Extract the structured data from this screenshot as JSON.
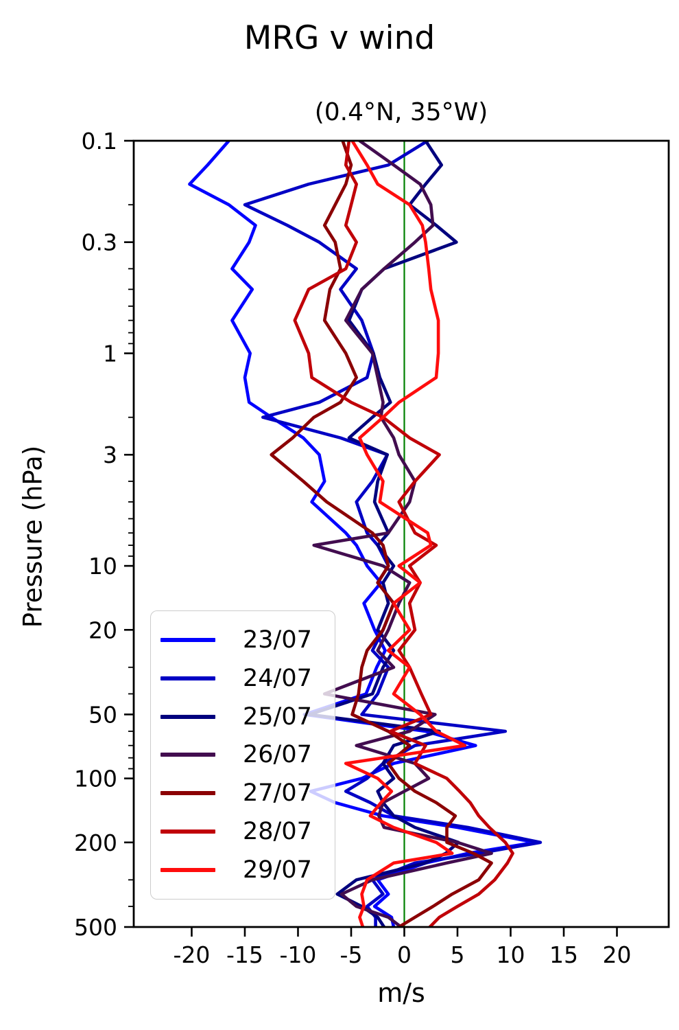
{
  "figure": {
    "title": "MRG v wind",
    "subtitle": "(0.4°N, 35°W)"
  },
  "chart_data": {
    "type": "line",
    "title": "MRG v wind",
    "subtitle": "(0.4°N, 35°W)",
    "xlabel": "m/s",
    "ylabel": "Pressure (hPa)",
    "grid": false,
    "legend_position": "center left",
    "x_axis": {
      "min": -25.45,
      "max": 24.87,
      "ticks": [
        -20,
        -15,
        -10,
        -5,
        0,
        5,
        10,
        15,
        20
      ],
      "tick_labels": [
        "-20",
        "-15",
        "-10",
        "-5",
        "0",
        "5",
        "10",
        "15",
        "20"
      ]
    },
    "y_axis": {
      "scale": "log",
      "inverted": true,
      "min": 0.1,
      "max": 500,
      "ticks": [
        0.1,
        0.3,
        1,
        3,
        10,
        20,
        50,
        100,
        200,
        500
      ],
      "tick_labels": [
        "0.1",
        "0.3",
        "1",
        "3",
        "10",
        "20",
        "50",
        "100",
        "200",
        "500"
      ],
      "minor_ticks": [
        0.2,
        0.4,
        0.5,
        0.6,
        0.7,
        0.8,
        0.9,
        2,
        4,
        5,
        6,
        7,
        8,
        9,
        30,
        40,
        60,
        70,
        80,
        90,
        300,
        400
      ]
    },
    "zero_line": {
      "x": 0,
      "color": "#008000"
    },
    "pressure_levels": [
      0.1,
      0.13,
      0.16,
      0.2,
      0.25,
      0.3,
      0.4,
      0.5,
      0.7,
      1,
      1.3,
      1.7,
      2,
      2.5,
      3,
      4,
      5,
      7,
      8,
      10,
      12,
      15,
      20,
      25,
      30,
      40,
      50,
      60,
      70,
      85,
      100,
      115,
      130,
      150,
      170,
      200,
      225,
      250,
      300,
      350,
      400,
      450,
      500
    ],
    "series": [
      {
        "name": "23/07",
        "color": "#0202ff",
        "values": [
          -16.5,
          -18.5,
          -20.2,
          -16.5,
          -14,
          -14.6,
          -16.2,
          -14.3,
          -16.2,
          -14.5,
          -15,
          -14.6,
          -12.5,
          -9.5,
          -8,
          -7.5,
          -8.7,
          -5.5,
          -4.5,
          -3.5,
          -2.2,
          -3.8,
          -2.8,
          -1.8,
          -2.6,
          -3.6,
          -9.4,
          2,
          6.7,
          -1,
          -4,
          -8.8,
          -6.5,
          -2,
          5,
          12.3,
          6,
          2,
          -2.5,
          -1.5,
          -2.8,
          -1.2,
          -1
        ]
      },
      {
        "name": "24/07",
        "color": "#0000c4",
        "values": [
          2.2,
          -1.5,
          -9,
          -15,
          -11,
          -8,
          -4.5,
          -6,
          -4,
          -2.9,
          -3.5,
          -8,
          -13.3,
          -6,
          -1.6,
          -3,
          -4.5,
          -3.5,
          -2.5,
          -1.5,
          -2.5,
          -1,
          -2,
          -3,
          -1.5,
          -2.5,
          -4,
          9.5,
          1,
          -2,
          -3.5,
          -5.5,
          -3.2,
          -1,
          6,
          12.8,
          7,
          1,
          -3,
          -2,
          -3.5,
          -2.7,
          -2.7
        ]
      },
      {
        "name": "25/07",
        "color": "#00007e",
        "values": [
          2,
          3.5,
          2,
          0.5,
          3,
          4.9,
          -1.9,
          -4,
          -5.2,
          -2.9,
          -2.3,
          -1.3,
          -3,
          -5.2,
          -1.6,
          -2.5,
          -2.8,
          -1.5,
          -2.5,
          -1,
          -2,
          -1.5,
          -2.5,
          -1,
          -2,
          -3,
          -8.9,
          3.3,
          -1,
          -2,
          -1,
          -2.5,
          -2,
          -1,
          1,
          5.1,
          3.9,
          2,
          -4.5,
          -6.3,
          -4,
          -2.5,
          -1.9
        ]
      },
      {
        "name": "26/07",
        "color": "#420d4f",
        "values": [
          -4.2,
          -1,
          1.5,
          2.5,
          2.7,
          1,
          -1.9,
          -4,
          -5.5,
          -3,
          -2.5,
          -2,
          -2.2,
          -1,
          -0.5,
          1,
          0.5,
          -1.5,
          -8.5,
          -2,
          0.5,
          -0.5,
          -1.5,
          -2.5,
          -1,
          -7.5,
          2.9,
          0.5,
          -4.5,
          1,
          2.3,
          0,
          -2,
          -2.4,
          -1.9,
          5,
          8.2,
          4,
          -3,
          -5.9,
          -4.5,
          -1.5,
          -0.3
        ]
      },
      {
        "name": "27/07",
        "color": "#8b0004",
        "values": [
          -5.8,
          -5,
          -5.5,
          -6.5,
          -7.5,
          -6.5,
          -6,
          -7,
          -7.5,
          -5.5,
          -4.5,
          -6,
          -8.5,
          -10.5,
          -12.5,
          -9.5,
          -7.3,
          -3,
          -2,
          -1.5,
          -2.5,
          -1,
          -2,
          -3.5,
          -4,
          -4.3,
          -4.9,
          -1.5,
          0.5,
          -1.5,
          -0.5,
          1,
          3,
          4.8,
          4,
          4,
          6.5,
          8.2,
          7,
          4.5,
          2.7,
          1,
          -0.5
        ]
      },
      {
        "name": "28/07",
        "color": "#c00008",
        "values": [
          -5.2,
          -5.5,
          -4.5,
          -5,
          -5.5,
          -4.5,
          -5.5,
          -9,
          -10.3,
          -9,
          -8.7,
          -5,
          -2,
          0.5,
          3.3,
          1,
          -0.5,
          1,
          3,
          0.5,
          1.5,
          0.5,
          1,
          -0.5,
          0.5,
          1.6,
          2.5,
          -1.3,
          2,
          1,
          4,
          5.2,
          6.2,
          7,
          8,
          9.5,
          10.2,
          9.7,
          8.5,
          7,
          5,
          3.3,
          2.4
        ]
      },
      {
        "name": "29/07",
        "color": "#ff0d0d",
        "values": [
          -4.9,
          -3.5,
          -2.5,
          0.5,
          1.7,
          2,
          2.3,
          2.5,
          3.2,
          3.2,
          3,
          -0.5,
          -2,
          -4.2,
          -3.5,
          -2,
          -2.3,
          2.2,
          2.5,
          -0.5,
          1.5,
          -1,
          0.5,
          -1.5,
          0.5,
          -1,
          1.5,
          3,
          5.7,
          -5.5,
          -2.5,
          -1.2,
          -2.2,
          -3.2,
          -1,
          3,
          4.5,
          -1,
          -3.5,
          -4,
          -3.8,
          -4.2,
          -3.9
        ]
      }
    ]
  }
}
